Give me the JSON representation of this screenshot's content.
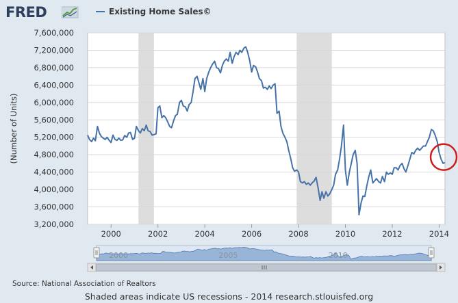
{
  "header": {
    "logo_text": "FRED",
    "legend_label": "Existing Home Sales©"
  },
  "colors": {
    "series": "#4572a7",
    "recession": "#dddddd",
    "annotation": "#cc1e1e",
    "background": "#e1e9f0",
    "plot_bg": "#ffffff"
  },
  "chart_data": {
    "type": "line",
    "title": "",
    "xlabel": "",
    "ylabel": "(Number of Units)",
    "xlim": [
      1999.0,
      2014.25
    ],
    "ylim": [
      3200000,
      7600000
    ],
    "y_ticks": [
      "3,200,000",
      "3,600,000",
      "4,000,000",
      "4,400,000",
      "4,800,000",
      "5,200,000",
      "5,600,000",
      "6,000,000",
      "6,400,000",
      "6,800,000",
      "7,200,000",
      "7,600,000"
    ],
    "y_tick_values": [
      3200000,
      3600000,
      4000000,
      4400000,
      4800000,
      5200000,
      5600000,
      6000000,
      6400000,
      6800000,
      7200000,
      7600000
    ],
    "x_ticks": [
      "2000",
      "2002",
      "2004",
      "2006",
      "2008",
      "2010",
      "2012",
      "2014"
    ],
    "x_tick_values": [
      2000,
      2002,
      2004,
      2006,
      2008,
      2010,
      2012,
      2014
    ],
    "grid": true,
    "legend_position": "top",
    "recessions": [
      [
        2001.17,
        2001.83
      ],
      [
        2007.92,
        2009.42
      ]
    ],
    "series": [
      {
        "name": "Existing Home Sales©",
        "points": [
          [
            1999.0,
            5250000
          ],
          [
            1999.08,
            5150000
          ],
          [
            1999.17,
            5100000
          ],
          [
            1999.25,
            5180000
          ],
          [
            1999.33,
            5120000
          ],
          [
            1999.42,
            5450000
          ],
          [
            1999.5,
            5300000
          ],
          [
            1999.58,
            5220000
          ],
          [
            1999.67,
            5180000
          ],
          [
            1999.75,
            5150000
          ],
          [
            1999.83,
            5200000
          ],
          [
            1999.92,
            5130000
          ],
          [
            2000.0,
            5080000
          ],
          [
            2000.08,
            5250000
          ],
          [
            2000.17,
            5150000
          ],
          [
            2000.25,
            5130000
          ],
          [
            2000.33,
            5180000
          ],
          [
            2000.42,
            5130000
          ],
          [
            2000.5,
            5140000
          ],
          [
            2000.58,
            5240000
          ],
          [
            2000.67,
            5200000
          ],
          [
            2000.75,
            5300000
          ],
          [
            2000.83,
            5310000
          ],
          [
            2000.92,
            5150000
          ],
          [
            2001.0,
            5180000
          ],
          [
            2001.08,
            5450000
          ],
          [
            2001.17,
            5350000
          ],
          [
            2001.25,
            5300000
          ],
          [
            2001.33,
            5400000
          ],
          [
            2001.42,
            5350000
          ],
          [
            2001.5,
            5480000
          ],
          [
            2001.58,
            5350000
          ],
          [
            2001.67,
            5330000
          ],
          [
            2001.75,
            5250000
          ],
          [
            2001.83,
            5260000
          ],
          [
            2001.92,
            5280000
          ],
          [
            2002.0,
            5880000
          ],
          [
            2002.08,
            5920000
          ],
          [
            2002.17,
            5650000
          ],
          [
            2002.25,
            5700000
          ],
          [
            2002.33,
            5650000
          ],
          [
            2002.42,
            5550000
          ],
          [
            2002.5,
            5450000
          ],
          [
            2002.58,
            5420000
          ],
          [
            2002.67,
            5580000
          ],
          [
            2002.75,
            5700000
          ],
          [
            2002.83,
            5730000
          ],
          [
            2002.92,
            6000000
          ],
          [
            2003.0,
            6050000
          ],
          [
            2003.08,
            5920000
          ],
          [
            2003.17,
            5900000
          ],
          [
            2003.25,
            5800000
          ],
          [
            2003.33,
            5950000
          ],
          [
            2003.42,
            6000000
          ],
          [
            2003.5,
            6250000
          ],
          [
            2003.58,
            6550000
          ],
          [
            2003.67,
            6600000
          ],
          [
            2003.75,
            6450000
          ],
          [
            2003.83,
            6300000
          ],
          [
            2003.92,
            6550000
          ],
          [
            2004.0,
            6250000
          ],
          [
            2004.08,
            6550000
          ],
          [
            2004.17,
            6700000
          ],
          [
            2004.25,
            6800000
          ],
          [
            2004.33,
            6880000
          ],
          [
            2004.42,
            6950000
          ],
          [
            2004.5,
            6800000
          ],
          [
            2004.58,
            6780000
          ],
          [
            2004.67,
            6680000
          ],
          [
            2004.75,
            6850000
          ],
          [
            2004.83,
            6950000
          ],
          [
            2004.92,
            7000000
          ],
          [
            2005.0,
            6950000
          ],
          [
            2005.08,
            7150000
          ],
          [
            2005.17,
            6900000
          ],
          [
            2005.25,
            7050000
          ],
          [
            2005.33,
            7150000
          ],
          [
            2005.42,
            7100000
          ],
          [
            2005.5,
            7200000
          ],
          [
            2005.58,
            7150000
          ],
          [
            2005.67,
            7250000
          ],
          [
            2005.75,
            7280000
          ],
          [
            2005.83,
            7150000
          ],
          [
            2005.92,
            6950000
          ],
          [
            2006.0,
            6700000
          ],
          [
            2006.08,
            6850000
          ],
          [
            2006.17,
            6820000
          ],
          [
            2006.25,
            6700000
          ],
          [
            2006.33,
            6550000
          ],
          [
            2006.42,
            6500000
          ],
          [
            2006.5,
            6330000
          ],
          [
            2006.58,
            6350000
          ],
          [
            2006.67,
            6300000
          ],
          [
            2006.75,
            6380000
          ],
          [
            2006.83,
            6320000
          ],
          [
            2006.92,
            6400000
          ],
          [
            2007.0,
            6430000
          ],
          [
            2007.08,
            5750000
          ],
          [
            2007.17,
            5800000
          ],
          [
            2007.25,
            5450000
          ],
          [
            2007.33,
            5300000
          ],
          [
            2007.42,
            5200000
          ],
          [
            2007.5,
            5100000
          ],
          [
            2007.58,
            4900000
          ],
          [
            2007.67,
            4700000
          ],
          [
            2007.75,
            4500000
          ],
          [
            2007.83,
            4420000
          ],
          [
            2007.92,
            4450000
          ],
          [
            2008.0,
            4400000
          ],
          [
            2008.08,
            4180000
          ],
          [
            2008.17,
            4150000
          ],
          [
            2008.25,
            4180000
          ],
          [
            2008.33,
            4120000
          ],
          [
            2008.42,
            4150000
          ],
          [
            2008.5,
            4100000
          ],
          [
            2008.58,
            4150000
          ],
          [
            2008.67,
            4200000
          ],
          [
            2008.75,
            4280000
          ],
          [
            2008.83,
            4050000
          ],
          [
            2008.92,
            3750000
          ],
          [
            2009.0,
            3950000
          ],
          [
            2009.08,
            3800000
          ],
          [
            2009.17,
            3950000
          ],
          [
            2009.25,
            3850000
          ],
          [
            2009.33,
            3900000
          ],
          [
            2009.42,
            4000000
          ],
          [
            2009.5,
            4100000
          ],
          [
            2009.58,
            4350000
          ],
          [
            2009.67,
            4450000
          ],
          [
            2009.75,
            4700000
          ],
          [
            2009.83,
            5000000
          ],
          [
            2009.92,
            5480000
          ],
          [
            2010.0,
            4450000
          ],
          [
            2010.08,
            4100000
          ],
          [
            2010.17,
            4400000
          ],
          [
            2010.25,
            4600000
          ],
          [
            2010.33,
            4800000
          ],
          [
            2010.42,
            4900000
          ],
          [
            2010.5,
            4600000
          ],
          [
            2010.58,
            3420000
          ],
          [
            2010.67,
            3700000
          ],
          [
            2010.75,
            3850000
          ],
          [
            2010.83,
            3840000
          ],
          [
            2010.92,
            4100000
          ],
          [
            2011.0,
            4300000
          ],
          [
            2011.08,
            4450000
          ],
          [
            2011.17,
            4150000
          ],
          [
            2011.25,
            4200000
          ],
          [
            2011.33,
            4250000
          ],
          [
            2011.42,
            4180000
          ],
          [
            2011.5,
            4150000
          ],
          [
            2011.58,
            4300000
          ],
          [
            2011.67,
            4180000
          ],
          [
            2011.75,
            4400000
          ],
          [
            2011.83,
            4350000
          ],
          [
            2011.92,
            4380000
          ],
          [
            2012.0,
            4350000
          ],
          [
            2012.08,
            4500000
          ],
          [
            2012.17,
            4500000
          ],
          [
            2012.25,
            4450000
          ],
          [
            2012.33,
            4550000
          ],
          [
            2012.42,
            4600000
          ],
          [
            2012.5,
            4480000
          ],
          [
            2012.58,
            4400000
          ],
          [
            2012.67,
            4550000
          ],
          [
            2012.75,
            4700000
          ],
          [
            2012.83,
            4850000
          ],
          [
            2012.92,
            4820000
          ],
          [
            2013.0,
            4900000
          ],
          [
            2013.08,
            4950000
          ],
          [
            2013.17,
            4900000
          ],
          [
            2013.25,
            4950000
          ],
          [
            2013.33,
            5000000
          ],
          [
            2013.42,
            5000000
          ],
          [
            2013.5,
            5100000
          ],
          [
            2013.58,
            5200000
          ],
          [
            2013.67,
            5380000
          ],
          [
            2013.75,
            5350000
          ],
          [
            2013.83,
            5250000
          ],
          [
            2013.92,
            5100000
          ],
          [
            2014.0,
            4850000
          ],
          [
            2014.08,
            4700000
          ],
          [
            2014.17,
            4600000
          ],
          [
            2014.25,
            4620000
          ]
        ]
      }
    ]
  },
  "navigator": {
    "labels": [
      "2000",
      "2005",
      "2010"
    ],
    "label_values": [
      2000,
      2005,
      2010
    ],
    "handle_left_icon": "grip-icon",
    "handle_right_icon": "grip-icon",
    "scroll_left_icon": "arrow-left-icon",
    "scroll_right_icon": "arrow-right-icon"
  },
  "footer": {
    "source": "Source: National Association of Realtors",
    "note": "Shaded areas indicate US recessions - 2014 research.stlouisfed.org"
  }
}
